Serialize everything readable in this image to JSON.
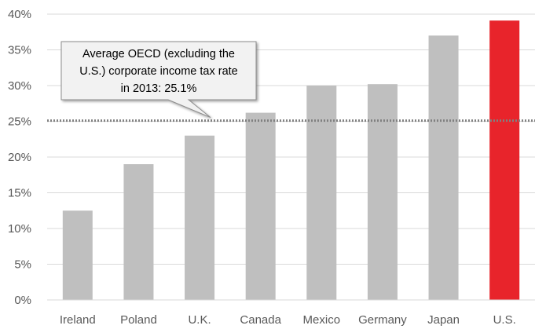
{
  "chart_data": {
    "type": "bar",
    "categories": [
      "Ireland",
      "Poland",
      "U.K.",
      "Canada",
      "Mexico",
      "Germany",
      "Japan",
      "U.S."
    ],
    "values": [
      12.5,
      19.0,
      23.0,
      26.2,
      30.0,
      30.2,
      37.0,
      39.1
    ],
    "ylim": [
      0,
      40
    ],
    "yticks": [
      "0%",
      "5%",
      "10%",
      "15%",
      "20%",
      "25%",
      "30%",
      "35%",
      "40%"
    ],
    "grid": true,
    "bar_color": "#bfbfbf",
    "highlight_color": "#e8242b",
    "highlight_category": "U.S.",
    "reference_line": {
      "value": 25.1,
      "style": "dotted",
      "color": "#808080"
    },
    "annotation": {
      "lines": [
        "Average OECD (excluding the",
        "U.S.) corporate income tax rate",
        "in 2013: 25.1%"
      ]
    }
  }
}
